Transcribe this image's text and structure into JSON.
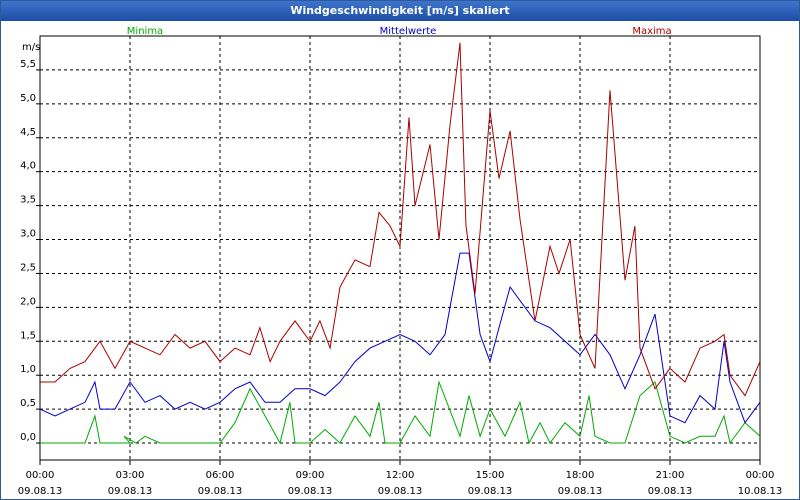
{
  "window": {
    "title": "Windgeschwindigkeit [m/s] skaliert"
  },
  "chart_data": {
    "type": "line",
    "title": "Windgeschwindigkeit [m/s] skaliert",
    "ylabel": "m/s",
    "ylim": [
      -0.25,
      6.0
    ],
    "xlim": [
      0,
      24
    ],
    "grid": true,
    "y_ticks": [
      "0,0",
      "0,5",
      "1,0",
      "1,5",
      "2,0",
      "2,5",
      "3,0",
      "3,5",
      "4,0",
      "4,5",
      "5,0",
      "5,5"
    ],
    "x_ticks": [
      {
        "time": "00:00",
        "date": "09.08.13"
      },
      {
        "time": "03:00",
        "date": "09.08.13"
      },
      {
        "time": "06:00",
        "date": "09.08.13"
      },
      {
        "time": "09:00",
        "date": "09.08.13"
      },
      {
        "time": "12:00",
        "date": "09.08.13"
      },
      {
        "time": "15:00",
        "date": "09.08.13"
      },
      {
        "time": "18:00",
        "date": "09.08.13"
      },
      {
        "time": "21:00",
        "date": "09.08.13"
      },
      {
        "time": "00:00",
        "date": "10.08.13"
      }
    ],
    "series": [
      {
        "name": "Minima",
        "color": "#00aa00",
        "x": [
          0,
          1.5,
          1.83,
          2,
          3,
          2.8,
          3.2,
          3.5,
          4,
          5,
          6,
          6.5,
          7,
          7.5,
          8,
          8.33,
          8.5,
          9,
          9.5,
          10,
          10.5,
          11,
          11.3,
          11.5,
          12,
          12.5,
          13,
          13.3,
          14,
          14.3,
          14.67,
          15,
          15.5,
          16,
          16.3,
          16.67,
          17,
          17.5,
          18,
          18.3,
          18.5,
          19,
          19.5,
          20,
          20.5,
          21,
          21.5,
          22,
          22.5,
          22.8,
          23,
          23.5,
          24
        ],
        "y": [
          0,
          0,
          0.4,
          0,
          0,
          0.1,
          0,
          0.1,
          0,
          0,
          0,
          0.3,
          0.8,
          0.4,
          0,
          0.6,
          0,
          0,
          0.2,
          0,
          0.4,
          0.1,
          0.6,
          0,
          0,
          0.4,
          0.1,
          0.9,
          0.1,
          0.7,
          0.1,
          0.5,
          0.1,
          0.6,
          0,
          0.3,
          0,
          0.3,
          0.1,
          0.7,
          0.1,
          0,
          0,
          0.7,
          0.9,
          0.1,
          0,
          0.1,
          0.1,
          0.4,
          0,
          0.3,
          0.1
        ]
      },
      {
        "name": "Mittelwerte",
        "color": "#0000cc",
        "x": [
          0,
          0.5,
          1,
          1.5,
          1.83,
          2,
          2.5,
          3,
          3.5,
          4,
          4.5,
          5,
          5.5,
          6,
          6.5,
          7,
          7.5,
          8,
          8.5,
          9,
          9.5,
          10,
          10.5,
          11,
          11.5,
          12,
          12.5,
          13,
          13.5,
          14,
          14.3,
          14.67,
          15,
          15.3,
          15.67,
          16,
          16.5,
          17,
          17.5,
          18,
          18.5,
          19,
          19.5,
          20,
          20.5,
          21,
          21.5,
          22,
          22.5,
          22.8,
          23,
          23.5,
          24
        ],
        "y": [
          0.5,
          0.4,
          0.5,
          0.6,
          0.9,
          0.5,
          0.5,
          0.9,
          0.6,
          0.7,
          0.5,
          0.6,
          0.5,
          0.6,
          0.8,
          0.9,
          0.6,
          0.6,
          0.8,
          0.8,
          0.7,
          0.9,
          1.2,
          1.4,
          1.5,
          1.6,
          1.5,
          1.3,
          1.6,
          2.8,
          2.8,
          1.6,
          1.2,
          1.7,
          2.3,
          2.1,
          1.8,
          1.7,
          1.5,
          1.3,
          1.6,
          1.3,
          0.8,
          1.3,
          1.9,
          0.4,
          0.3,
          0.7,
          0.5,
          1.5,
          0.9,
          0.3,
          0.6
        ]
      },
      {
        "name": "Maxima",
        "color": "#aa0000",
        "x": [
          0,
          0.5,
          1,
          1.5,
          2,
          2.5,
          3,
          3.5,
          4,
          4.5,
          5,
          5.5,
          6,
          6.5,
          7,
          7.33,
          7.67,
          8,
          8.5,
          9,
          9.33,
          9.67,
          10,
          10.5,
          11,
          11.3,
          11.67,
          12,
          12.3,
          12.5,
          13,
          13.3,
          13.67,
          14,
          14.2,
          14.5,
          15,
          15.3,
          15.67,
          16,
          16.5,
          17,
          17.3,
          17.67,
          18,
          18.5,
          19,
          19.5,
          19.83,
          20,
          20.5,
          21,
          21.5,
          22,
          22.5,
          22.8,
          23,
          23.5,
          24
        ],
        "y": [
          0.9,
          0.9,
          1.1,
          1.2,
          1.5,
          1.1,
          1.5,
          1.4,
          1.3,
          1.6,
          1.4,
          1.5,
          1.2,
          1.4,
          1.3,
          1.7,
          1.2,
          1.5,
          1.8,
          1.5,
          1.8,
          1.4,
          2.3,
          2.7,
          2.6,
          3.4,
          3.2,
          2.9,
          4.8,
          3.5,
          4.4,
          3.0,
          4.7,
          5.9,
          3.2,
          2.2,
          4.9,
          3.9,
          4.6,
          3.3,
          1.8,
          2.9,
          2.5,
          3.0,
          1.6,
          1.1,
          5.2,
          2.4,
          3.2,
          1.4,
          0.8,
          1.1,
          0.9,
          1.4,
          1.5,
          1.6,
          1.0,
          0.7,
          1.2
        ]
      }
    ]
  }
}
